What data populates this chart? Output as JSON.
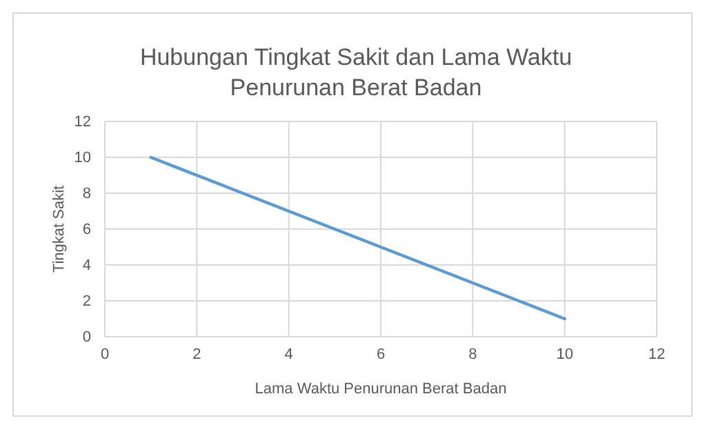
{
  "chart_data": {
    "type": "line",
    "title": "Hubungan Tingkat Sakit dan Lama Waktu Penurunan Berat Badan",
    "xlabel": "Lama Waktu Penurunan Berat Badan",
    "ylabel": "Tingkat Sakit",
    "x": [
      1,
      2,
      3,
      4,
      5,
      6,
      7,
      8,
      9,
      10
    ],
    "series": [
      {
        "color": "#5b9bd5",
        "values": [
          10,
          9,
          8,
          7,
          6,
          5,
          4,
          3,
          2,
          1
        ]
      }
    ],
    "xlim": [
      0,
      12
    ],
    "xticks": [
      0,
      2,
      4,
      6,
      8,
      10,
      12
    ],
    "ylim": [
      0,
      12
    ],
    "yticks": [
      0,
      2,
      4,
      6,
      8,
      10,
      12
    ],
    "grid": true,
    "marker": "none",
    "line_style": "solid"
  }
}
